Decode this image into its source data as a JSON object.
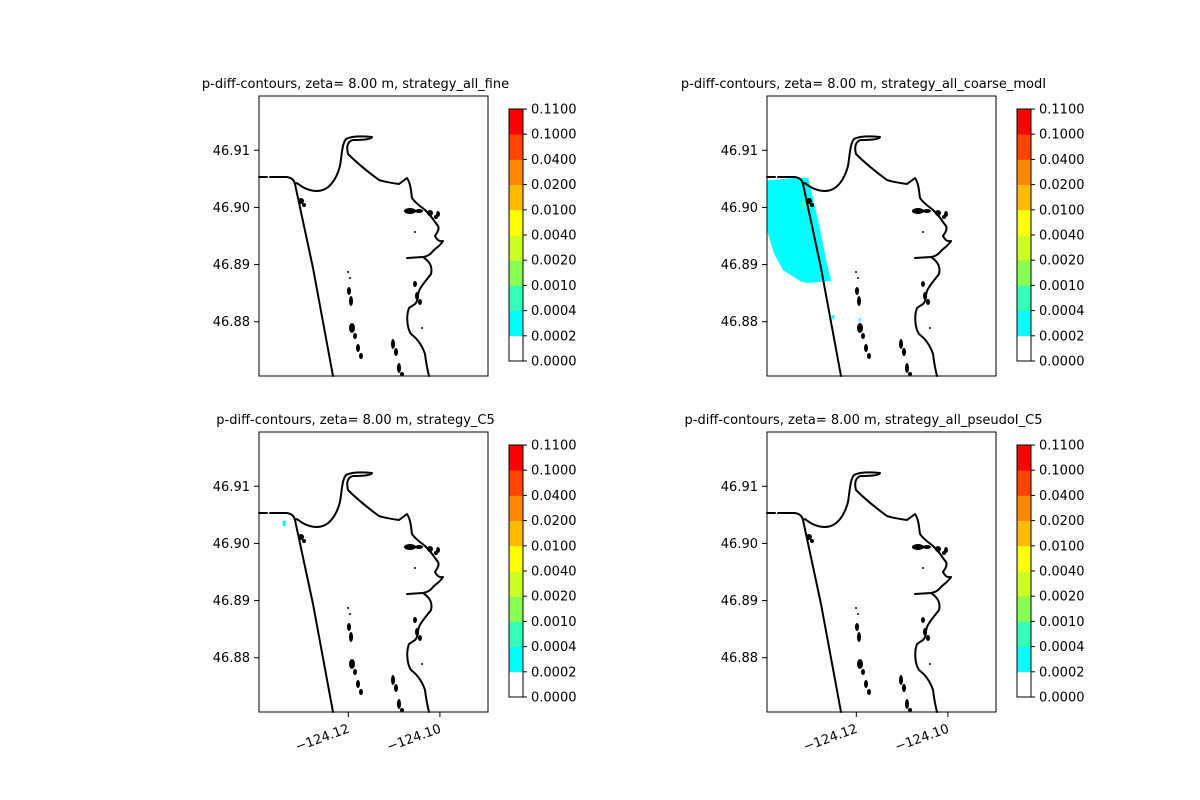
{
  "figure": {
    "background": "#ffffff"
  },
  "chart_data": [
    {
      "type": "heatmap",
      "title": "p-diff-contours, zeta= 8.00 m, strategy_all_fine",
      "ylim": [
        46.8705,
        46.9195
      ],
      "xlim": [
        -124.1395,
        -124.0895
      ],
      "yticks": [
        {
          "value": 46.88,
          "label": "46.88"
        },
        {
          "value": 46.89,
          "label": "46.89"
        },
        {
          "value": 46.9,
          "label": "46.90"
        },
        {
          "value": 46.91,
          "label": "46.91"
        }
      ],
      "xticks": [],
      "colorbar": {
        "levels": [
          "0.0000",
          "0.0002",
          "0.0004",
          "0.0010",
          "0.0020",
          "0.0040",
          "0.0100",
          "0.0200",
          "0.0400",
          "0.1000",
          "0.1100"
        ],
        "colors": [
          "#ffffff",
          "#00ffff",
          "#33ffbb",
          "#88ff55",
          "#ccff22",
          "#ffff00",
          "#ffbb00",
          "#ff8800",
          "#ff4400",
          "#ff0000"
        ]
      },
      "regions": []
    },
    {
      "type": "heatmap",
      "title": "p-diff-contours, zeta= 8.00 m, strategy_all_coarse_modI",
      "ylim": [
        46.8705,
        46.9195
      ],
      "xlim": [
        -124.1395,
        -124.0895
      ],
      "yticks": [
        {
          "value": 46.88,
          "label": "46.88"
        },
        {
          "value": 46.89,
          "label": "46.89"
        },
        {
          "value": 46.9,
          "label": "46.90"
        },
        {
          "value": 46.91,
          "label": "46.91"
        }
      ],
      "xticks": [],
      "colorbar": {
        "levels": [
          "0.0000",
          "0.0002",
          "0.0004",
          "0.0010",
          "0.0020",
          "0.0040",
          "0.0100",
          "0.0200",
          "0.0400",
          "0.1000",
          "0.1100"
        ],
        "colors": [
          "#ffffff",
          "#00ffff",
          "#33ffbb",
          "#88ff55",
          "#ccff22",
          "#ffff00",
          "#ffbb00",
          "#ff8800",
          "#ff4400",
          "#ff0000"
        ]
      },
      "regions": [
        {
          "level": "0.0002-0.0004",
          "color": "#00ffff",
          "lonlat": [
            [
              -124.1395,
              46.9047
            ],
            [
              -124.1335,
              46.9052
            ],
            [
              -124.1305,
              46.9052
            ],
            [
              -124.1287,
              46.899
            ],
            [
              -124.1275,
              46.8945
            ],
            [
              -124.1265,
              46.8905
            ],
            [
              -124.1255,
              46.8872
            ],
            [
              -124.1275,
              46.887
            ],
            [
              -124.1305,
              46.8868
            ],
            [
              -124.132,
              46.887
            ],
            [
              -124.134,
              46.888
            ],
            [
              -124.136,
              46.889
            ],
            [
              -124.138,
              46.892
            ],
            [
              -124.1395,
              46.896
            ]
          ]
        },
        {
          "level": "0.0004-0.0010",
          "color": "#33ffbb",
          "lonlat": [
            [
              -124.132,
              46.9012
            ],
            [
              -124.1306,
              46.9016
            ],
            [
              -124.1304,
              46.9
            ],
            [
              -124.1318,
              46.8996
            ]
          ]
        },
        {
          "level": "0.0002-0.0004",
          "color": "#00ffff",
          "lonlat": [
            [
              -124.1255,
              46.881
            ],
            [
              -124.1247,
              46.8812
            ],
            [
              -124.125,
              46.8802
            ]
          ]
        },
        {
          "level": "0.0002-0.0004",
          "color": "#00ffff",
          "lonlat": [
            [
              -124.1195,
              46.8804
            ],
            [
              -124.119,
              46.8808
            ],
            [
              -124.1192,
              46.8798
            ]
          ]
        }
      ]
    },
    {
      "type": "heatmap",
      "title": "p-diff-contours, zeta= 8.00 m, strategy_C5",
      "ylim": [
        46.8705,
        46.9195
      ],
      "xlim": [
        -124.1395,
        -124.0895
      ],
      "yticks": [
        {
          "value": 46.88,
          "label": "46.88"
        },
        {
          "value": 46.89,
          "label": "46.89"
        },
        {
          "value": 46.9,
          "label": "46.90"
        },
        {
          "value": 46.91,
          "label": "46.91"
        }
      ],
      "xticks": [
        {
          "value": -124.12,
          "label": "−124.12"
        },
        {
          "value": -124.1,
          "label": "−124.10"
        }
      ],
      "colorbar": {
        "levels": [
          "0.0000",
          "0.0002",
          "0.0004",
          "0.0010",
          "0.0020",
          "0.0040",
          "0.0100",
          "0.0200",
          "0.0400",
          "0.1000",
          "0.1100"
        ],
        "colors": [
          "#ffffff",
          "#00ffff",
          "#33ffbb",
          "#88ff55",
          "#ccff22",
          "#ffff00",
          "#ffbb00",
          "#ff8800",
          "#ff4400",
          "#ff0000"
        ]
      },
      "regions": [
        {
          "level": "0.0002-0.0004",
          "color": "#00ffff",
          "lonlat": [
            [
              -124.1343,
              46.904
            ],
            [
              -124.1336,
              46.904
            ],
            [
              -124.1338,
              46.903
            ],
            [
              -124.1344,
              46.9031
            ]
          ]
        }
      ]
    },
    {
      "type": "heatmap",
      "title": "p-diff-contours, zeta= 8.00 m, strategy_all_pseudoI_C5",
      "ylim": [
        46.8705,
        46.9195
      ],
      "xlim": [
        -124.1395,
        -124.0895
      ],
      "yticks": [
        {
          "value": 46.88,
          "label": "46.88"
        },
        {
          "value": 46.89,
          "label": "46.89"
        },
        {
          "value": 46.9,
          "label": "46.90"
        },
        {
          "value": 46.91,
          "label": "46.91"
        }
      ],
      "xticks": [
        {
          "value": -124.12,
          "label": "−124.12"
        },
        {
          "value": -124.1,
          "label": "−124.10"
        }
      ],
      "colorbar": {
        "levels": [
          "0.0000",
          "0.0002",
          "0.0004",
          "0.0010",
          "0.0020",
          "0.0040",
          "0.0100",
          "0.0200",
          "0.0400",
          "0.1000",
          "0.1100"
        ],
        "colors": [
          "#ffffff",
          "#00ffff",
          "#33ffbb",
          "#88ff55",
          "#ccff22",
          "#ffff00",
          "#ffbb00",
          "#ff8800",
          "#ff4400",
          "#ff0000"
        ]
      },
      "regions": []
    }
  ]
}
